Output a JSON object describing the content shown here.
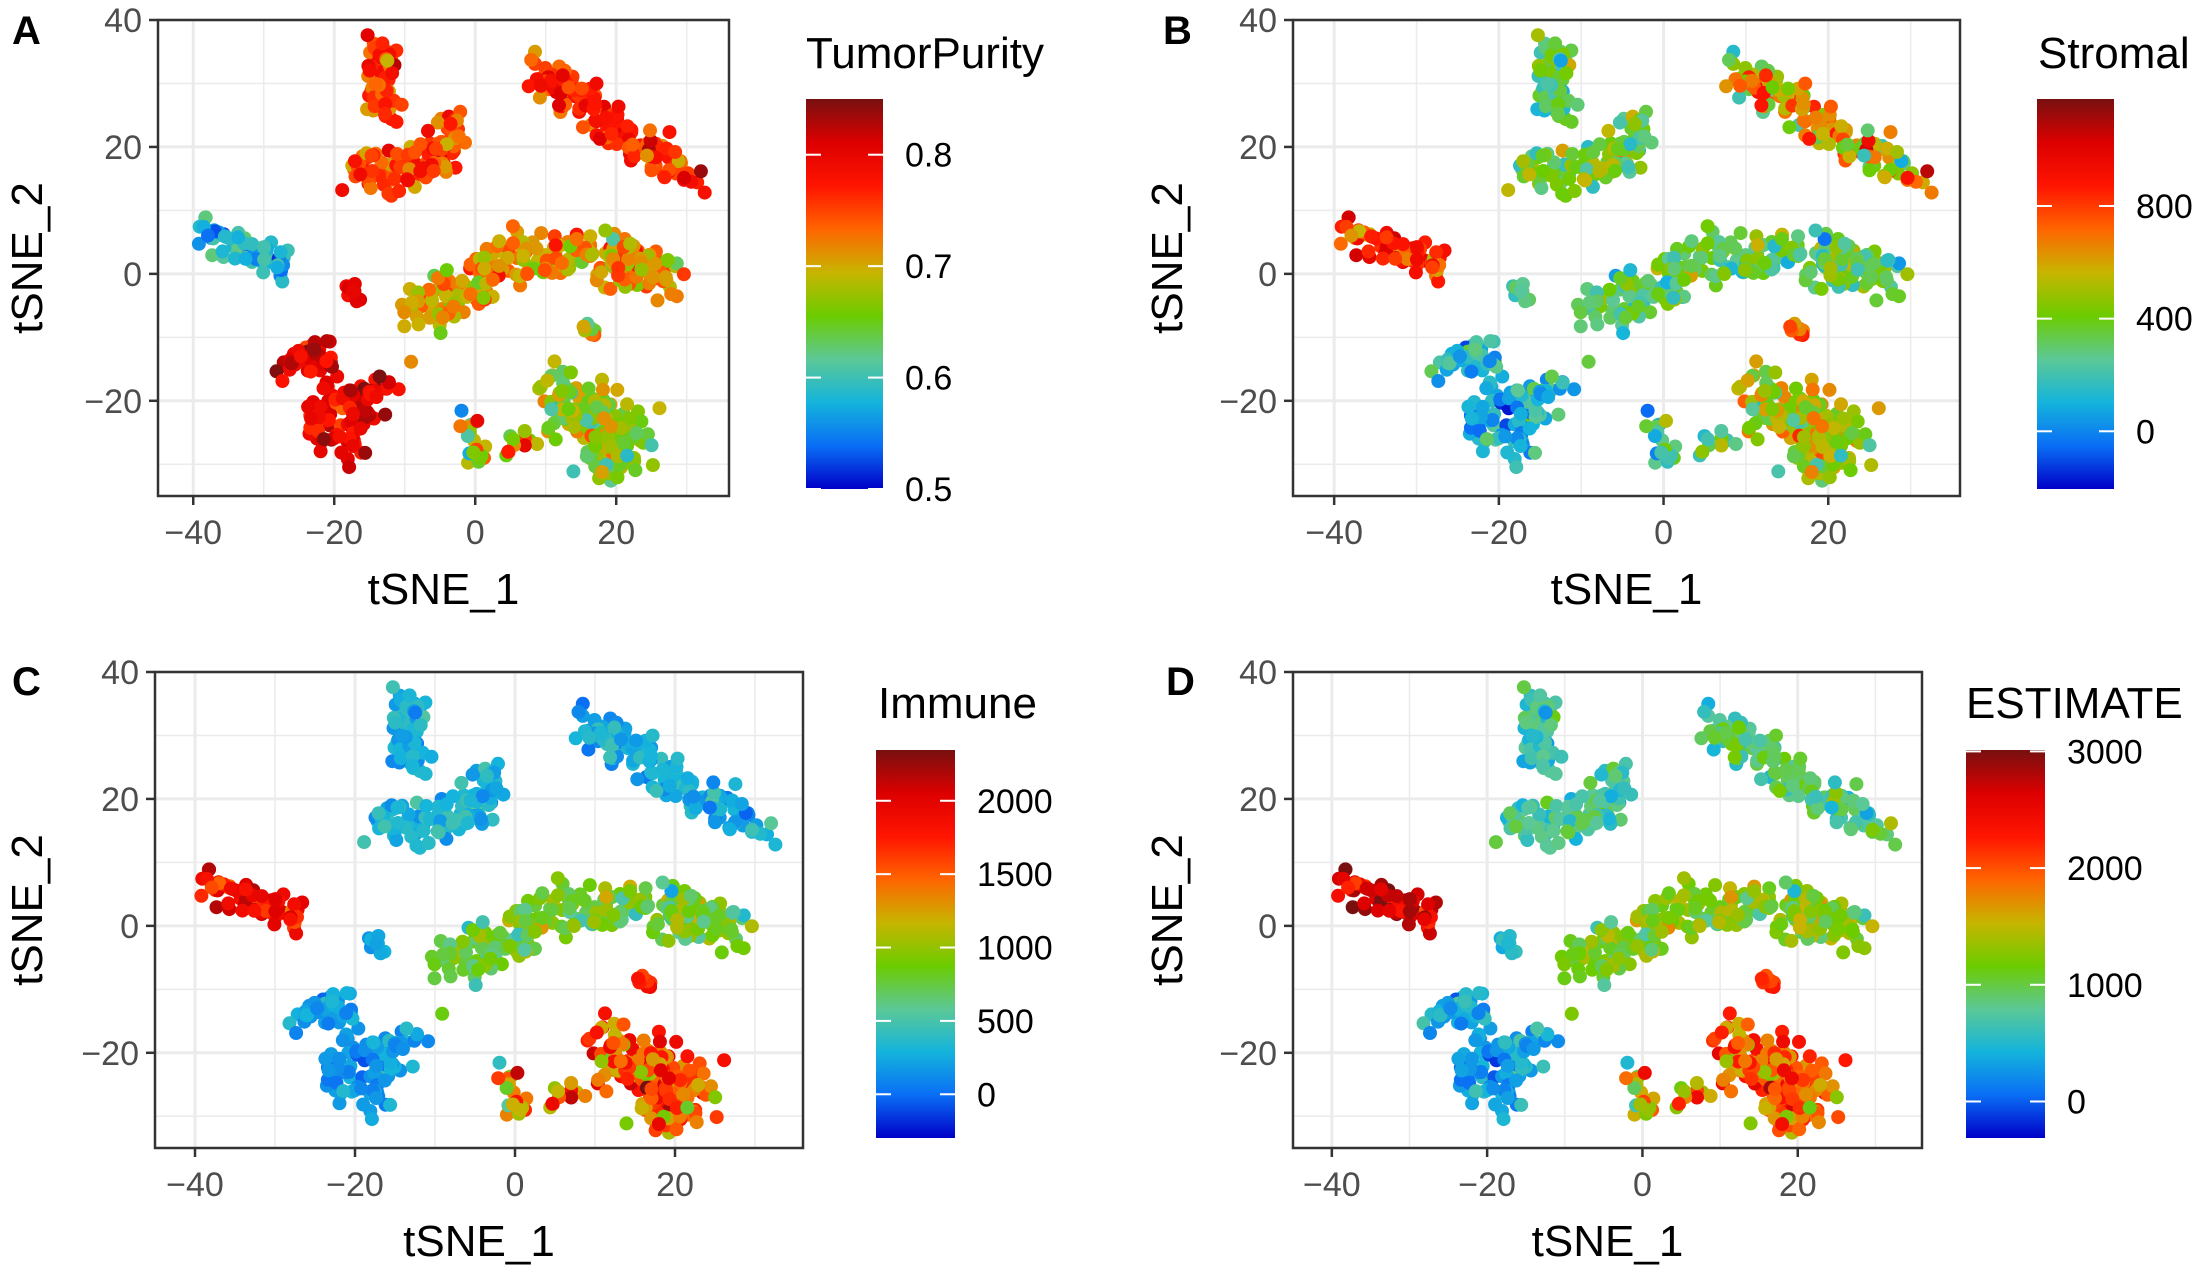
{
  "embedding_clusters": [
    {
      "spine_x": [
        -14,
        -14,
        -13
      ],
      "spine_y": [
        36,
        30,
        24
      ],
      "spread": 2.2,
      "n": 60
    },
    {
      "spine_x": [
        -17,
        -11,
        -5,
        -3
      ],
      "spine_y": [
        17,
        16,
        18,
        23
      ],
      "spread": 2.6,
      "n": 110
    },
    {
      "spine_x": [
        9,
        15,
        22,
        31
      ],
      "spine_y": [
        32,
        27,
        21,
        15
      ],
      "spread": 2.4,
      "n": 140
    },
    {
      "spine_x": [
        -39,
        -33,
        -28
      ],
      "spine_y": [
        7,
        4,
        1
      ],
      "spread": 2.2,
      "n": 70
    },
    {
      "spine_x": [
        -18,
        -17
      ],
      "spine_y": [
        -1,
        -4
      ],
      "spread": 0.9,
      "n": 8
    },
    {
      "spine_x": [
        -8,
        0,
        10,
        20,
        27
      ],
      "spine_y": [
        -7,
        -1,
        4,
        2,
        0
      ],
      "spread": 3.2,
      "n": 260
    },
    {
      "spine_x": [
        16,
        17
      ],
      "spine_y": [
        -8,
        -10
      ],
      "spread": 0.8,
      "n": 8
    },
    {
      "spine_x": [
        -26,
        -22,
        -19,
        -14,
        -18,
        -24
      ],
      "spine_y": [
        -14,
        -12,
        -22,
        -17,
        -28,
        -22
      ],
      "spread": 2.0,
      "n": 150
    },
    {
      "spine_x": [
        10,
        16,
        22,
        16
      ],
      "spine_y": [
        -18,
        -22,
        -26,
        -30
      ],
      "spread": 3.4,
      "n": 190
    },
    {
      "spine_x": [
        -1,
        -1,
        3,
        8
      ],
      "spine_y": [
        -21,
        -29,
        -28,
        -26
      ],
      "spread": 1.3,
      "n": 30
    }
  ],
  "chart_data": [
    {
      "type": "scatter",
      "panel": "A",
      "xlabel": "tSNE_1",
      "ylabel": "tSNE_2",
      "xlim": [
        -45,
        36
      ],
      "ylim": [
        -35,
        40
      ],
      "xticks": [
        -40,
        -20,
        0,
        20
      ],
      "yticks": [
        -20,
        0,
        20,
        40
      ],
      "grid": true,
      "legend": {
        "title": "TumorPurity",
        "placement": "right",
        "range": [
          0.5,
          0.85
        ],
        "ticks": [
          0.5,
          0.6,
          0.7,
          0.8
        ],
        "tick_labels": [
          "0.5",
          "0.6",
          "0.7",
          "0.8"
        ]
      },
      "cluster_values": [
        [
          0.76,
          0.03
        ],
        [
          0.75,
          0.03
        ],
        [
          0.77,
          0.025
        ],
        [
          0.58,
          0.03
        ],
        [
          0.8,
          0.01
        ],
        [
          0.71,
          0.03
        ],
        [
          0.66,
          0.04
        ],
        [
          0.8,
          0.025
        ],
        [
          0.66,
          0.03
        ],
        [
          0.68,
          0.05
        ]
      ]
    },
    {
      "type": "scatter",
      "panel": "B",
      "xlabel": "tSNE_1",
      "ylabel": "tSNE_2",
      "xlim": [
        -45,
        36
      ],
      "ylim": [
        -35,
        40
      ],
      "xticks": [
        -40,
        -20,
        0,
        20
      ],
      "yticks": [
        -20,
        0,
        20,
        40
      ],
      "grid": true,
      "legend": {
        "title": "Stromal",
        "placement": "right",
        "range": [
          -205,
          1180
        ],
        "ticks": [
          0,
          400,
          800
        ],
        "tick_labels": [
          "0",
          "400",
          "800"
        ]
      },
      "cluster_values": [
        [
          330,
          120
        ],
        [
          380,
          130
        ],
        [
          600,
          180
        ],
        [
          820,
          150
        ],
        [
          250,
          60
        ],
        [
          330,
          110
        ],
        [
          700,
          80
        ],
        [
          120,
          110
        ],
        [
          470,
          130
        ],
        [
          250,
          120
        ]
      ]
    },
    {
      "type": "scatter",
      "panel": "C",
      "xlabel": "tSNE_1",
      "ylabel": "tSNE_2",
      "xlim": [
        -45,
        36
      ],
      "ylim": [
        -35,
        40
      ],
      "xticks": [
        -40,
        -20,
        0,
        20
      ],
      "yticks": [
        -20,
        0,
        20,
        40
      ],
      "grid": true,
      "legend": {
        "title": "Immune",
        "placement": "right",
        "range": [
          -298,
          2346
        ],
        "ticks": [
          0,
          500,
          1000,
          1500,
          2000
        ],
        "tick_labels": [
          "0",
          "500",
          "1000",
          "1500",
          "2000"
        ]
      },
      "cluster_values": [
        [
          300,
          110
        ],
        [
          320,
          120
        ],
        [
          280,
          110
        ],
        [
          1850,
          220
        ],
        [
          220,
          60
        ],
        [
          820,
          180
        ],
        [
          1700,
          100
        ],
        [
          180,
          100
        ],
        [
          1500,
          300
        ],
        [
          1300,
          350
        ]
      ]
    },
    {
      "type": "scatter",
      "panel": "D",
      "xlabel": "tSNE_1",
      "ylabel": "tSNE_2",
      "xlim": [
        -45,
        36
      ],
      "ylim": [
        -35,
        40
      ],
      "xticks": [
        -40,
        -20,
        0,
        20
      ],
      "yticks": [
        -20,
        0,
        20,
        40
      ],
      "grid": true,
      "legend": {
        "title": "ESTIMATE",
        "placement": "right",
        "range": [
          -313,
          3012
        ],
        "ticks": [
          0,
          1000,
          2000,
          3000
        ],
        "tick_labels": [
          "0",
          "1000",
          "2000",
          "3000"
        ]
      },
      "cluster_values": [
        [
          700,
          200
        ],
        [
          750,
          200
        ],
        [
          900,
          200
        ],
        [
          2600,
          300
        ],
        [
          500,
          100
        ],
        [
          1200,
          220
        ],
        [
          2100,
          100
        ],
        [
          350,
          180
        ],
        [
          1900,
          330
        ],
        [
          1500,
          400
        ]
      ]
    }
  ],
  "colors": {
    "colormap": [
      "#0000c8",
      "#0a6ef5",
      "#14b4dc",
      "#5cc896",
      "#6ccc00",
      "#c8b400",
      "#ff6400",
      "#ff1400",
      "#dc0000",
      "#781010"
    ],
    "grid": "#ebebeb",
    "border": "#333333",
    "tick_text": "#4d4d4d"
  }
}
